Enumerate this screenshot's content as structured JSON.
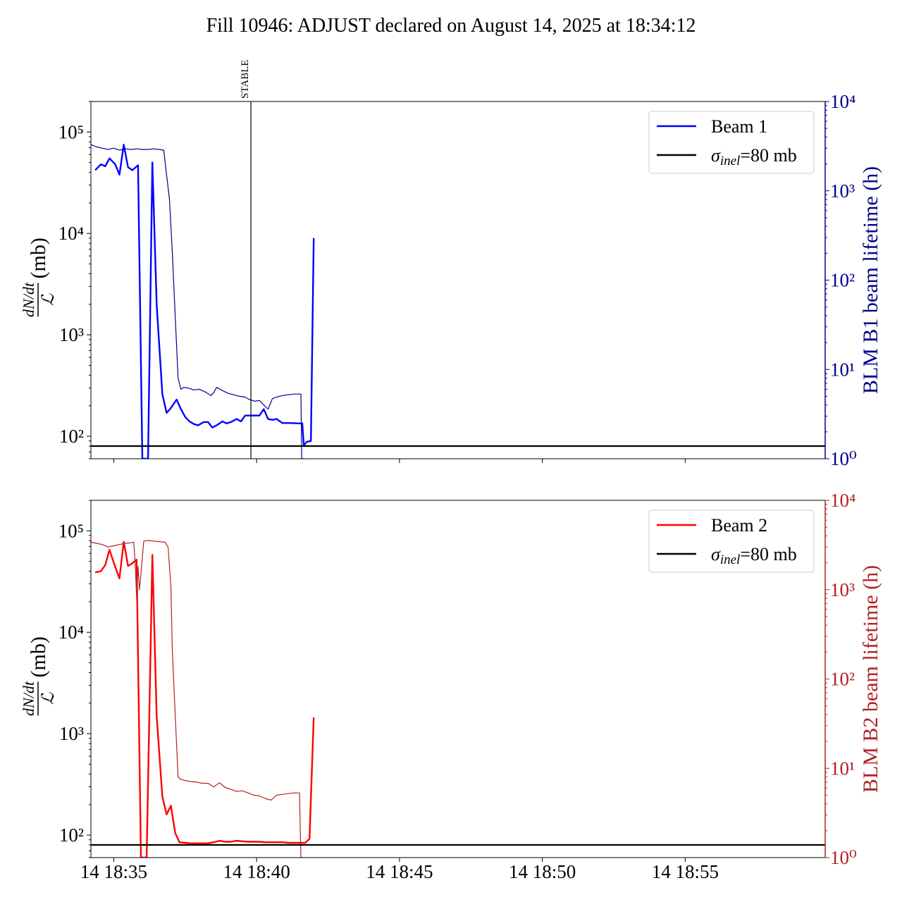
{
  "figure_title": "Fill 10946: ADJUST declared on August 14, 2025 at 18:34:12",
  "chart_data": [
    {
      "type": "line",
      "panel": "top",
      "x_unit": "minutes after 18:00 on Aug 14",
      "xlim": [
        34.2,
        59.9
      ],
      "x_ticks": [
        {
          "value": 35,
          "label": "14 18:35"
        },
        {
          "value": 40,
          "label": "14 18:40"
        },
        {
          "value": 45,
          "label": "14 18:45"
        },
        {
          "value": 50,
          "label": "14 18:50"
        },
        {
          "value": 55,
          "label": "14 18:55"
        }
      ],
      "ylabel_left": {
        "num": "dN/dt",
        "den": "ℒ",
        "unit": "(mb)"
      },
      "ylim_left": [
        60,
        200000
      ],
      "yscale_left": "log",
      "y_ticks_left": [
        "10²",
        "10³",
        "10⁴",
        "10⁵"
      ],
      "ylabel_right": "BLM B1 beam lifetime (h)",
      "ylim_right": [
        1,
        10000
      ],
      "yscale_right": "log",
      "y_ticks_right": [
        "10⁰",
        "10¹",
        "10²",
        "10³",
        "10⁴"
      ],
      "right_axis_color": "#00008b",
      "marker": {
        "label": "STABLE",
        "x": 39.8
      },
      "legend_position": "upper right",
      "legend": [
        {
          "label": "Beam 1",
          "color": "#0000ff"
        },
        {
          "label_main": "σ",
          "label_sub": "inel",
          "label_rest": "=80 mb",
          "color": "#000000"
        }
      ],
      "hline": {
        "y": 80,
        "color": "#000000"
      },
      "series": [
        {
          "name": "Beam 1",
          "axis": "left",
          "color": "#0000ff",
          "x": [
            34.35,
            34.55,
            34.7,
            34.85,
            35.05,
            35.2,
            35.35,
            35.5,
            35.65,
            35.85,
            36.0,
            36.05,
            36.1,
            36.2,
            36.35,
            36.5,
            36.7,
            36.85,
            37.0,
            37.2,
            37.35,
            37.5,
            37.65,
            37.8,
            37.95,
            38.15,
            38.3,
            38.45,
            38.6,
            38.8,
            38.95,
            39.1,
            39.3,
            39.45,
            39.6,
            39.75,
            39.9,
            40.1,
            40.25,
            40.4,
            40.55,
            40.7,
            40.9,
            41.05,
            41.2,
            41.45,
            41.6,
            41.65,
            41.75,
            41.9,
            42.0
          ],
          "y": [
            42000,
            48000,
            46000,
            55000,
            48000,
            38000,
            75000,
            45000,
            42000,
            47000,
            60,
            60,
            60,
            60,
            50000,
            2000,
            260,
            170,
            190,
            230,
            185,
            155,
            140,
            132,
            128,
            138,
            138,
            122,
            128,
            140,
            134,
            138,
            148,
            140,
            160,
            160,
            160,
            160,
            185,
            148,
            145,
            148,
            135,
            135,
            135,
            134,
            134,
            81,
            88,
            90,
            9000
          ]
        },
        {
          "name": "BLM B1 beam lifetime",
          "axis": "right",
          "color": "#00008b",
          "x": [
            34.2,
            34.4,
            34.6,
            34.8,
            35.0,
            35.2,
            35.4,
            35.6,
            35.8,
            36.0,
            36.2,
            36.4,
            36.6,
            36.75,
            36.85,
            36.95,
            37.05,
            37.15,
            37.25,
            37.35,
            37.45,
            37.6,
            37.8,
            38.0,
            38.2,
            38.4,
            38.5,
            38.6,
            38.8,
            39.0,
            39.2,
            39.4,
            39.6,
            39.75,
            39.95,
            40.1,
            40.25,
            40.4,
            40.55,
            40.7,
            40.9,
            41.1,
            41.3,
            41.55,
            41.58,
            41.7
          ],
          "y": [
            3300,
            3100,
            3000,
            2900,
            3000,
            2850,
            2950,
            2900,
            2950,
            2900,
            2900,
            2950,
            2900,
            2850,
            1500,
            800,
            200,
            40,
            8,
            6,
            6.3,
            6.2,
            5.9,
            6,
            5.6,
            5.1,
            5.5,
            6.3,
            5.8,
            5.4,
            5.2,
            5.0,
            4.9,
            4.6,
            4.4,
            4.5,
            4.0,
            3.6,
            4.7,
            4.9,
            5.1,
            5.2,
            5.3,
            5.3,
            1,
            1
          ]
        }
      ]
    },
    {
      "type": "line",
      "panel": "bottom",
      "x_unit": "minutes after 18:00 on Aug 14",
      "xlim": [
        34.2,
        59.9
      ],
      "x_ticks": [
        {
          "value": 35,
          "label": "14 18:35"
        },
        {
          "value": 40,
          "label": "14 18:40"
        },
        {
          "value": 45,
          "label": "14 18:45"
        },
        {
          "value": 50,
          "label": "14 18:50"
        },
        {
          "value": 55,
          "label": "14 18:55"
        }
      ],
      "ylabel_left": {
        "num": "dN/dt",
        "den": "ℒ",
        "unit": "(mb)"
      },
      "ylim_left": [
        60,
        200000
      ],
      "yscale_left": "log",
      "y_ticks_left": [
        "10²",
        "10³",
        "10⁴",
        "10⁵"
      ],
      "ylabel_right": "BLM B2 beam lifetime (h)",
      "ylim_right": [
        1,
        10000
      ],
      "yscale_right": "log",
      "y_ticks_right": [
        "10⁰",
        "10¹",
        "10²",
        "10³",
        "10⁴"
      ],
      "right_axis_color": "#b22222",
      "legend_position": "upper right",
      "legend": [
        {
          "label": "Beam 2",
          "color": "#ff0000"
        },
        {
          "label_main": "σ",
          "label_sub": "inel",
          "label_rest": "=80 mb",
          "color": "#000000"
        }
      ],
      "hline": {
        "y": 80,
        "color": "#000000"
      },
      "series": [
        {
          "name": "Beam 2",
          "axis": "left",
          "color": "#ff0000",
          "x": [
            34.35,
            34.55,
            34.7,
            34.85,
            35.05,
            35.2,
            35.35,
            35.5,
            35.65,
            35.8,
            35.95,
            36.0,
            36.05,
            36.15,
            36.35,
            36.5,
            36.7,
            36.85,
            37.0,
            37.15,
            37.3,
            37.5,
            37.7,
            37.9,
            38.1,
            38.3,
            38.5,
            38.7,
            38.9,
            39.1,
            39.3,
            39.5,
            39.7,
            39.9,
            40.1,
            40.3,
            40.5,
            40.7,
            40.9,
            41.1,
            41.3,
            41.5,
            41.7,
            41.85,
            42.0
          ],
          "y": [
            39000,
            40000,
            46000,
            65000,
            44000,
            34000,
            78000,
            45000,
            48000,
            52000,
            60,
            60,
            60,
            60,
            58000,
            1500,
            240,
            160,
            195,
            105,
            85,
            84,
            83,
            83,
            83,
            83,
            85,
            88,
            86,
            86,
            88,
            87,
            86,
            86,
            86,
            85,
            85,
            85,
            85,
            84,
            84,
            84,
            84,
            92,
            1450
          ]
        },
        {
          "name": "BLM B2 beam lifetime",
          "axis": "right",
          "color": "#b22222",
          "x": [
            34.2,
            34.4,
            34.6,
            34.8,
            35.0,
            35.2,
            35.4,
            35.6,
            35.7,
            35.75,
            35.8,
            35.85,
            35.9,
            35.95,
            36.05,
            36.2,
            36.4,
            36.6,
            36.8,
            36.9,
            37.0,
            37.05,
            37.15,
            37.25,
            37.35,
            37.5,
            37.7,
            37.9,
            38.1,
            38.3,
            38.5,
            38.7,
            38.9,
            39.1,
            39.3,
            39.5,
            39.7,
            39.9,
            40.1,
            40.3,
            40.5,
            40.7,
            40.9,
            41.1,
            41.3,
            41.5,
            41.55,
            41.58,
            41.7
          ],
          "y": [
            3400,
            3300,
            3200,
            3000,
            3100,
            3200,
            3300,
            3350,
            3400,
            2000,
            800,
            1800,
            1000,
            1500,
            3500,
            3550,
            3500,
            3450,
            3400,
            3000,
            1100,
            200,
            40,
            8,
            7.5,
            7.3,
            7.1,
            7.0,
            6.8,
            6.8,
            6.2,
            6.9,
            6.1,
            5.8,
            5.5,
            5.6,
            5.3,
            5.0,
            4.9,
            4.6,
            4.4,
            5.0,
            5.1,
            5.2,
            5.3,
            5.3,
            1,
            1,
            1
          ]
        }
      ]
    }
  ]
}
